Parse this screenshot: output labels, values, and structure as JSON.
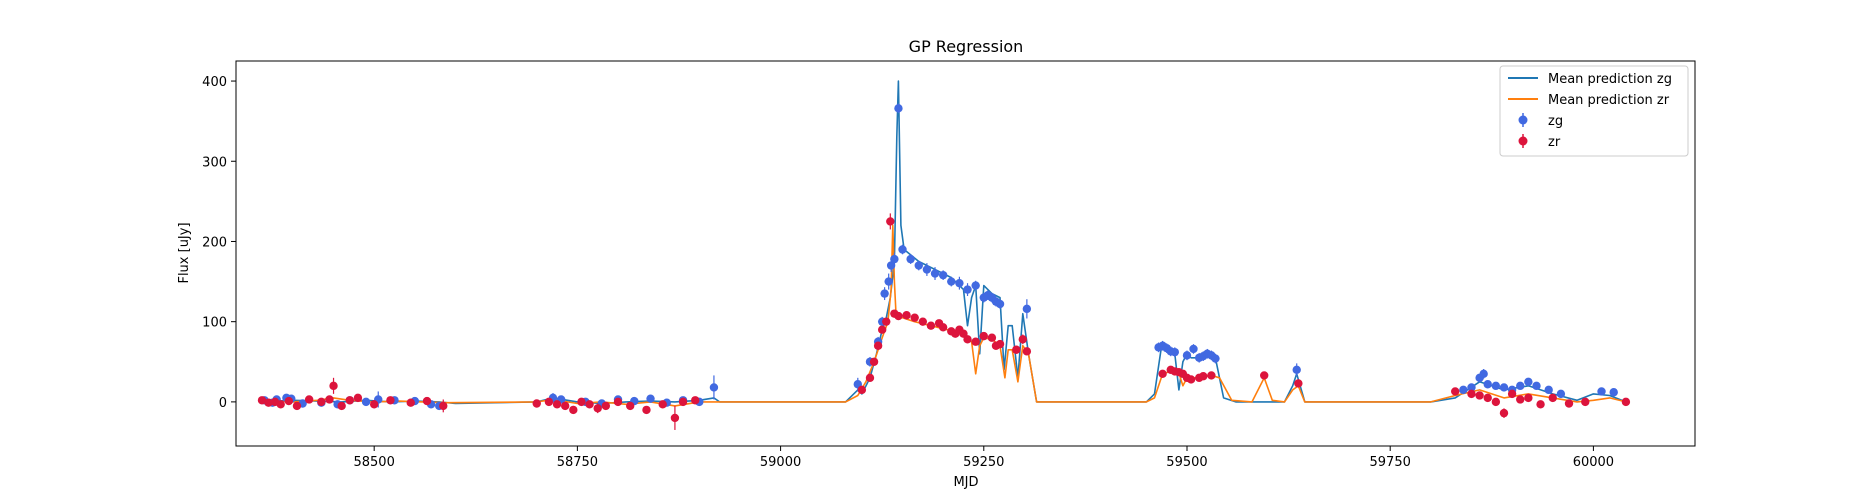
{
  "chart_data": {
    "type": "scatter",
    "title": "GP Regression",
    "xlabel": "MJD",
    "ylabel": "Flux [uJy]",
    "xlim": [
      58330,
      60125
    ],
    "ylim": [
      -55,
      425
    ],
    "xticks": [
      58500,
      58750,
      59000,
      59250,
      59500,
      59750,
      60000
    ],
    "yticks": [
      0,
      100,
      200,
      300,
      400
    ],
    "legend_position": "upper right",
    "legend": [
      "Mean prediction zg",
      "Mean prediction zr",
      "zg",
      "zr"
    ],
    "colors": {
      "mean_zg": "#1f77b4",
      "mean_zr": "#ff7f0e",
      "zg": "#4169e1",
      "zr": "#dc143c"
    },
    "series": [
      {
        "name": "Mean prediction zg",
        "kind": "line",
        "x": [
          58360,
          58380,
          58400,
          58430,
          58460,
          58490,
          58520,
          58550,
          58580,
          58600,
          58700,
          58720,
          58750,
          58780,
          58810,
          58840,
          58870,
          58900,
          58918,
          58925,
          59000,
          59080,
          59095,
          59100,
          59110,
          59118,
          59125,
          59130,
          59135,
          59140,
          59143,
          59145,
          59148,
          59152,
          59158,
          59170,
          59190,
          59210,
          59225,
          59230,
          59235,
          59240,
          59245,
          59250,
          59260,
          59270,
          59275,
          59280,
          59285,
          59292,
          59298,
          59305,
          59315,
          59330,
          59450,
          59460,
          59468,
          59478,
          59485,
          59490,
          59495,
          59500,
          59505,
          59515,
          59525,
          59535,
          59545,
          59560,
          59590,
          59620,
          59630,
          59635,
          59645,
          59660,
          59800,
          59830,
          59860,
          59890,
          59920,
          59950,
          59980,
          60000,
          60020,
          60040
        ],
        "y": [
          0,
          1,
          2,
          1,
          0,
          2,
          0,
          1,
          0,
          -2,
          0,
          5,
          0,
          -2,
          0,
          1,
          0,
          2,
          5,
          0,
          0,
          0,
          15,
          10,
          30,
          60,
          90,
          105,
          130,
          175,
          330,
          400,
          220,
          190,
          185,
          175,
          165,
          155,
          140,
          95,
          130,
          145,
          60,
          145,
          135,
          130,
          40,
          95,
          95,
          30,
          110,
          60,
          0,
          0,
          0,
          10,
          65,
          68,
          60,
          15,
          50,
          60,
          55,
          55,
          58,
          55,
          5,
          0,
          0,
          0,
          20,
          35,
          0,
          0,
          0,
          5,
          25,
          15,
          20,
          10,
          2,
          10,
          8,
          0
        ]
      },
      {
        "name": "Mean prediction zr",
        "kind": "line",
        "x": [
          58360,
          58380,
          58400,
          58430,
          58450,
          58470,
          58500,
          58530,
          58560,
          58590,
          58700,
          58720,
          58750,
          58780,
          58810,
          58840,
          58870,
          58900,
          58925,
          59000,
          59080,
          59095,
          59105,
          59115,
          59125,
          59132,
          59136,
          59138,
          59140,
          59142,
          59146,
          59150,
          59165,
          59185,
          59205,
          59225,
          59235,
          59240,
          59245,
          59250,
          59260,
          59270,
          59276,
          59280,
          59285,
          59292,
          59298,
          59305,
          59315,
          59330,
          59450,
          59460,
          59470,
          59480,
          59490,
          59495,
          59500,
          59510,
          59520,
          59530,
          59540,
          59555,
          59580,
          59595,
          59605,
          59620,
          59630,
          59637,
          59645,
          59660,
          59800,
          59830,
          59860,
          59890,
          59920,
          59950,
          59980,
          60000,
          60020,
          60040
        ],
        "y": [
          0,
          1,
          0,
          2,
          5,
          2,
          0,
          1,
          0,
          -1,
          0,
          3,
          -2,
          0,
          -3,
          0,
          -5,
          0,
          0,
          0,
          0,
          8,
          25,
          50,
          80,
          100,
          140,
          220,
          150,
          110,
          105,
          105,
          100,
          95,
          90,
          85,
          75,
          35,
          70,
          80,
          78,
          70,
          30,
          65,
          65,
          25,
          70,
          60,
          0,
          0,
          0,
          5,
          35,
          38,
          36,
          20,
          30,
          30,
          32,
          33,
          30,
          2,
          0,
          30,
          2,
          0,
          15,
          20,
          0,
          0,
          0,
          8,
          15,
          5,
          10,
          5,
          0,
          2,
          5,
          0
        ]
      },
      {
        "name": "zg",
        "kind": "errorbar",
        "x": [
          58365,
          58375,
          58380,
          58392,
          58398,
          58412,
          58435,
          58455,
          58470,
          58490,
          58505,
          58525,
          58550,
          58570,
          58580,
          58720,
          58730,
          58760,
          58780,
          58800,
          58820,
          58840,
          58860,
          58880,
          58900,
          58918,
          59095,
          59110,
          59120,
          59125,
          59128,
          59133,
          59136,
          59140,
          59145,
          59150,
          59160,
          59170,
          59180,
          59190,
          59200,
          59210,
          59220,
          59230,
          59240,
          59250,
          59255,
          59260,
          59265,
          59270,
          59303,
          59465,
          59470,
          59475,
          59480,
          59485,
          59500,
          59508,
          59515,
          59520,
          59525,
          59530,
          59535,
          59635,
          59840,
          59850,
          59860,
          59865,
          59870,
          59880,
          59890,
          59900,
          59910,
          59920,
          59930,
          59945,
          59960,
          60010,
          60025
        ],
        "y": [
          2,
          -1,
          3,
          5,
          4,
          -2,
          -1,
          -3,
          2,
          0,
          3,
          2,
          1,
          -3,
          -5,
          5,
          3,
          0,
          -2,
          3,
          1,
          4,
          -1,
          2,
          0,
          18,
          22,
          50,
          75,
          100,
          135,
          150,
          170,
          178,
          366,
          190,
          178,
          170,
          165,
          160,
          158,
          150,
          148,
          140,
          145,
          130,
          133,
          130,
          125,
          122,
          116,
          68,
          70,
          67,
          63,
          62,
          58,
          66,
          55,
          57,
          60,
          58,
          54,
          40,
          15,
          18,
          30,
          35,
          22,
          20,
          18,
          15,
          20,
          25,
          20,
          15,
          10,
          13,
          12
        ],
        "err": [
          4,
          4,
          4,
          4,
          4,
          4,
          4,
          4,
          4,
          4,
          10,
          4,
          4,
          4,
          4,
          6,
          4,
          4,
          4,
          4,
          4,
          4,
          4,
          4,
          4,
          15,
          8,
          6,
          6,
          6,
          8,
          10,
          8,
          8,
          6,
          6,
          6,
          6,
          8,
          8,
          6,
          6,
          8,
          8,
          6,
          6,
          6,
          6,
          6,
          6,
          12,
          6,
          6,
          6,
          6,
          6,
          6,
          6,
          6,
          6,
          6,
          6,
          6,
          8,
          4,
          4,
          4,
          6,
          4,
          4,
          4,
          4,
          4,
          4,
          4,
          4,
          4,
          4,
          4
        ]
      },
      {
        "name": "zr",
        "kind": "errorbar",
        "x": [
          58362,
          58370,
          58378,
          58385,
          58395,
          58405,
          58420,
          58435,
          58445,
          58450,
          58460,
          58470,
          58480,
          58500,
          58520,
          58545,
          58565,
          58585,
          58700,
          58715,
          58725,
          58735,
          58745,
          58755,
          58765,
          58775,
          58785,
          58800,
          58815,
          58835,
          58855,
          58870,
          58880,
          58895,
          59100,
          59110,
          59115,
          59120,
          59125,
          59130,
          59135,
          59140,
          59145,
          59155,
          59165,
          59175,
          59185,
          59195,
          59200,
          59210,
          59215,
          59220,
          59225,
          59230,
          59240,
          59250,
          59260,
          59265,
          59270,
          59290,
          59298,
          59303,
          59470,
          59480,
          59485,
          59490,
          59495,
          59500,
          59505,
          59515,
          59520,
          59530,
          59595,
          59637,
          59830,
          59850,
          59860,
          59870,
          59880,
          59890,
          59900,
          59910,
          59920,
          59935,
          59950,
          59970,
          59990,
          60040
        ],
        "y": [
          2,
          -1,
          0,
          -3,
          1,
          -5,
          3,
          0,
          3,
          20,
          -5,
          2,
          5,
          -3,
          2,
          -1,
          1,
          -5,
          -2,
          0,
          -3,
          -5,
          -10,
          0,
          -3,
          -8,
          -5,
          0,
          -5,
          -10,
          -3,
          -20,
          0,
          2,
          15,
          30,
          50,
          70,
          90,
          100,
          225,
          110,
          107,
          108,
          105,
          100,
          95,
          98,
          93,
          88,
          85,
          90,
          85,
          78,
          75,
          82,
          80,
          70,
          72,
          65,
          78,
          63,
          35,
          40,
          38,
          37,
          35,
          30,
          28,
          30,
          32,
          33,
          33,
          23,
          13,
          10,
          8,
          5,
          0,
          -14,
          10,
          3,
          5,
          -3,
          5,
          -2,
          0,
          0
        ],
        "err": [
          3,
          3,
          3,
          3,
          3,
          3,
          3,
          3,
          3,
          10,
          3,
          3,
          3,
          5,
          3,
          3,
          3,
          8,
          3,
          3,
          3,
          3,
          5,
          3,
          3,
          6,
          3,
          3,
          3,
          3,
          3,
          15,
          3,
          3,
          4,
          4,
          4,
          4,
          4,
          4,
          10,
          4,
          4,
          4,
          4,
          4,
          4,
          4,
          4,
          4,
          4,
          4,
          4,
          4,
          4,
          4,
          4,
          4,
          4,
          4,
          6,
          4,
          4,
          4,
          4,
          4,
          4,
          4,
          4,
          4,
          4,
          4,
          4,
          4,
          4,
          4,
          4,
          4,
          4,
          6,
          4,
          4,
          4,
          4,
          4,
          4,
          4,
          4
        ]
      }
    ]
  }
}
